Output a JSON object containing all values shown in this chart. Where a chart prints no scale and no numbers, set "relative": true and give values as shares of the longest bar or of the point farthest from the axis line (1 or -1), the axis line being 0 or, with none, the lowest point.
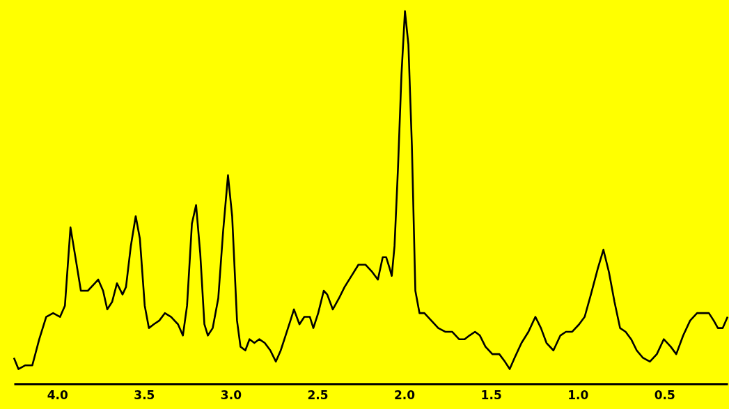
{
  "chart_data": {
    "type": "line",
    "relative": true,
    "color": "#000000",
    "line_style": "solid",
    "marker": "none",
    "grid": false,
    "xlim": [
      4.25,
      0.136
    ],
    "xticks": [
      {
        "value": 4,
        "label": "4.0"
      },
      {
        "value": 3.5,
        "label": "3.5"
      },
      {
        "value": 3,
        "label": "3.0"
      },
      {
        "value": 2.5,
        "label": "2.5"
      },
      {
        "value": 2,
        "label": "2.0"
      },
      {
        "value": 1.5,
        "label": "1.5"
      },
      {
        "value": 1,
        "label": "1.0"
      },
      {
        "value": 0.5,
        "label": "0.5"
      }
    ],
    "x": [
      4.25,
      4.224,
      4.184,
      4.144,
      4.104,
      4.064,
      4.024,
      3.984,
      3.956,
      3.924,
      3.892,
      3.864,
      3.824,
      3.784,
      3.764,
      3.736,
      3.712,
      3.684,
      3.656,
      3.624,
      3.604,
      3.576,
      3.548,
      3.524,
      3.496,
      3.472,
      3.444,
      3.412,
      3.38,
      3.344,
      3.304,
      3.276,
      3.252,
      3.224,
      3.2,
      3.176,
      3.152,
      3.132,
      3.104,
      3.072,
      3.044,
      3.016,
      2.992,
      2.964,
      2.944,
      2.916,
      2.892,
      2.864,
      2.836,
      2.804,
      2.772,
      2.74,
      2.712,
      2.684,
      2.656,
      2.636,
      2.604,
      2.576,
      2.544,
      2.524,
      2.496,
      2.464,
      2.444,
      2.412,
      2.376,
      2.344,
      2.304,
      2.264,
      2.224,
      2.184,
      2.152,
      2.124,
      2.104,
      2.084,
      2.072,
      2.056,
      2.036,
      2.016,
      1.996,
      1.976,
      1.956,
      1.936,
      1.912,
      1.884,
      1.844,
      1.804,
      1.764,
      1.724,
      1.684,
      1.652,
      1.624,
      1.592,
      1.564,
      1.532,
      1.492,
      1.452,
      1.42,
      1.392,
      1.364,
      1.324,
      1.284,
      1.244,
      1.212,
      1.18,
      1.14,
      1.1,
      1.068,
      1.032,
      0.992,
      0.96,
      0.924,
      0.884,
      0.852,
      0.82,
      0.788,
      0.756,
      0.724,
      0.692,
      0.66,
      0.624,
      0.584,
      0.544,
      0.504,
      0.464,
      0.432,
      0.392,
      0.352,
      0.312,
      0.272,
      0.244,
      0.216,
      0.192,
      0.164,
      0.136
    ],
    "values": [
      0.07,
      0.04,
      0.05,
      0.05,
      0.12,
      0.18,
      0.19,
      0.18,
      0.21,
      0.42,
      0.33,
      0.25,
      0.25,
      0.27,
      0.28,
      0.25,
      0.2,
      0.22,
      0.27,
      0.24,
      0.26,
      0.37,
      0.45,
      0.39,
      0.21,
      0.15,
      0.16,
      0.17,
      0.19,
      0.18,
      0.16,
      0.13,
      0.21,
      0.43,
      0.48,
      0.35,
      0.16,
      0.13,
      0.15,
      0.23,
      0.41,
      0.56,
      0.45,
      0.17,
      0.1,
      0.09,
      0.12,
      0.11,
      0.12,
      0.11,
      0.09,
      0.06,
      0.09,
      0.13,
      0.17,
      0.2,
      0.16,
      0.18,
      0.18,
      0.15,
      0.19,
      0.25,
      0.24,
      0.2,
      0.23,
      0.26,
      0.29,
      0.32,
      0.32,
      0.3,
      0.28,
      0.34,
      0.34,
      0.31,
      0.29,
      0.37,
      0.58,
      0.83,
      1.0,
      0.91,
      0.64,
      0.25,
      0.19,
      0.19,
      0.17,
      0.15,
      0.14,
      0.14,
      0.12,
      0.12,
      0.13,
      0.14,
      0.13,
      0.1,
      0.08,
      0.08,
      0.06,
      0.04,
      0.07,
      0.11,
      0.14,
      0.18,
      0.15,
      0.11,
      0.09,
      0.13,
      0.14,
      0.14,
      0.16,
      0.18,
      0.24,
      0.31,
      0.36,
      0.3,
      0.22,
      0.15,
      0.14,
      0.12,
      0.09,
      0.07,
      0.06,
      0.08,
      0.12,
      0.1,
      0.08,
      0.13,
      0.17,
      0.19,
      0.19,
      0.19,
      0.17,
      0.15,
      0.15,
      0.18
    ]
  }
}
